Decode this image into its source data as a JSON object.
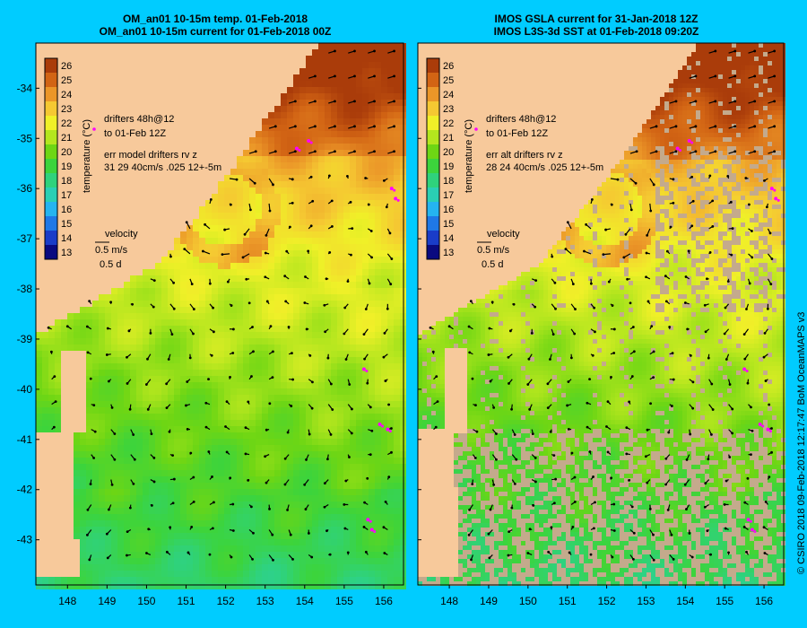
{
  "panels": [
    {
      "title_line1": "OM_an01 10-15m temp. 01-Feb-2018",
      "title_line2": "OM_an01 10-15m current for 01-Feb-2018 00Z",
      "drifters_line1": "drifters 48h@12",
      "drifters_line2": "to 01-Feb 12Z",
      "err_line1": "err model drifters rv z",
      "err_line2": "31 29 40cm/s .025 12+-5m",
      "velocity_label": "velocity",
      "velocity_scale": "0.5 m/s",
      "velocity_time": "0.5 d"
    },
    {
      "title_line1": "IMOS GSLA current for 31-Jan-2018 12Z",
      "title_line2": "IMOS L3S-3d SST at 01-Feb-2018 09:20Z",
      "drifters_line1": "drifters 48h@12",
      "drifters_line2": "to 01-Feb 12Z",
      "err_line1": "err alt drifters rv z",
      "err_line2": "28 24 40cm/s .025 12+-5m",
      "velocity_label": "velocity",
      "velocity_scale": "0.5 m/s",
      "velocity_time": "0.5 d"
    }
  ],
  "colorbar": {
    "label": "temperature (°C)",
    "ticks": [
      "26",
      "25",
      "24",
      "23",
      "22",
      "21",
      "20",
      "19",
      "18",
      "17",
      "16",
      "15",
      "14",
      "13"
    ]
  },
  "credit": "© CSIRO 2018   09-Feb-2018 12:17:47 BoM OceanMAPS v3",
  "colors": {
    "background": "#00ccff",
    "land": "#f7c99b",
    "nodata": "#c4aa8c",
    "drifter": "#ff00ff"
  },
  "chart_data": {
    "type": "heatmap",
    "xlim": [
      147.2,
      156.5
    ],
    "ylim": [
      -43.9,
      -33.1
    ],
    "x_ticks": [
      148,
      149,
      150,
      151,
      152,
      153,
      154,
      155,
      156
    ],
    "y_ticks": [
      -34,
      -35,
      -36,
      -37,
      -38,
      -39,
      -40,
      -41,
      -42,
      -43
    ],
    "colorbar_range": [
      12.5,
      26.5
    ],
    "eddy_center": {
      "lon": 152.0,
      "lat": -36.4
    }
  }
}
